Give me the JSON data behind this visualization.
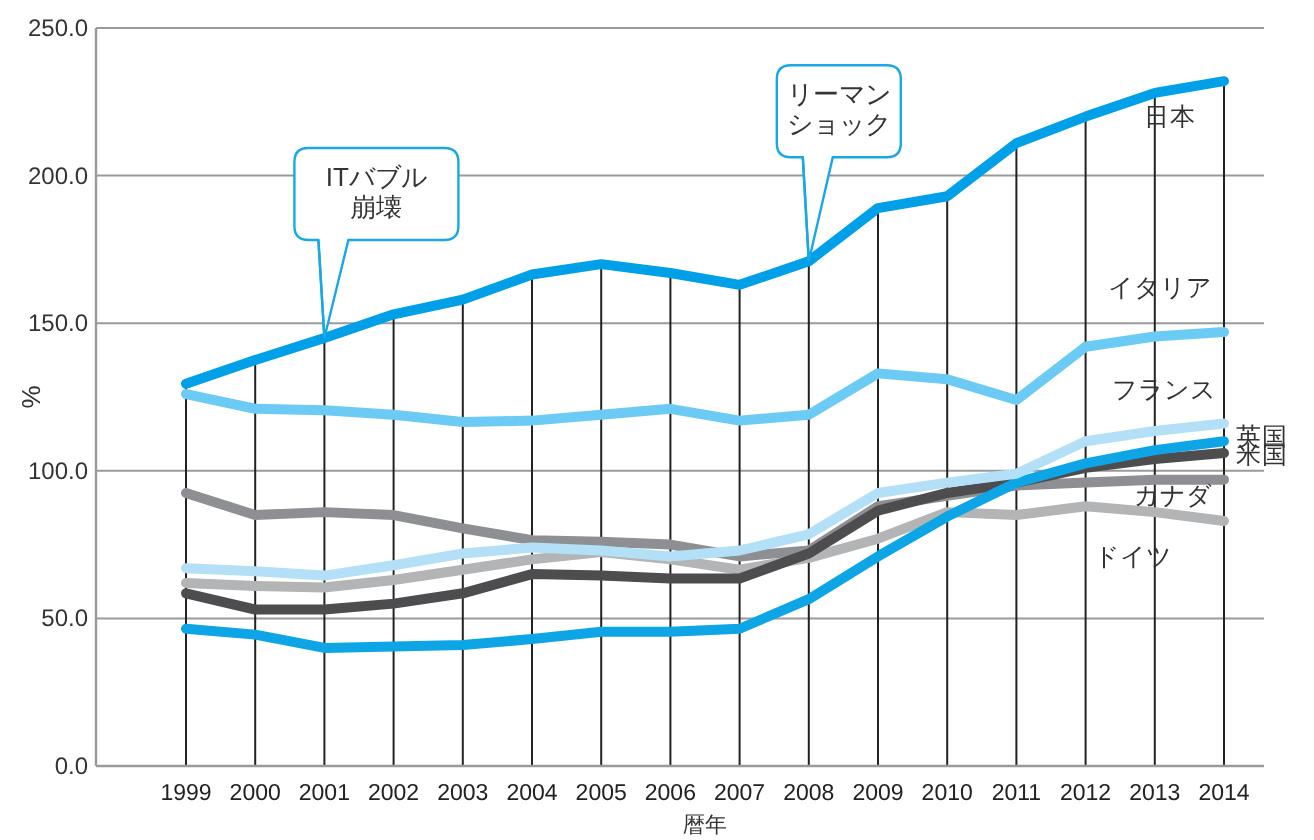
{
  "chart_data": {
    "type": "line",
    "xlabel": "暦年",
    "ylabel": "%",
    "categories": [
      "1999",
      "2000",
      "2001",
      "2002",
      "2003",
      "2004",
      "2005",
      "2006",
      "2007",
      "2008",
      "2009",
      "2010",
      "2011",
      "2012",
      "2013",
      "2014"
    ],
    "ylim": [
      0,
      250
    ],
    "yticks": [
      {
        "value": 0,
        "label": "0.0"
      },
      {
        "value": 50,
        "label": "50.0"
      },
      {
        "value": 100,
        "label": "100.0"
      },
      {
        "value": 150,
        "label": "150.0"
      },
      {
        "value": 200,
        "label": "200.0"
      },
      {
        "value": 250,
        "label": "250.0"
      }
    ],
    "grid": true,
    "legend": false,
    "marker": "none",
    "line_style": "solid",
    "series": [
      {
        "name": "日本",
        "color": "#00a0e9",
        "values": [
          129.5,
          137.5,
          145,
          153,
          158,
          166.5,
          170,
          167,
          163,
          171,
          189,
          193,
          211,
          220,
          228,
          232
        ]
      },
      {
        "name": "イタリア",
        "color": "#6ccbf4",
        "values": [
          126,
          121,
          120.5,
          119,
          116.5,
          117,
          119,
          121,
          117,
          119,
          133,
          131,
          124,
          142,
          145.5,
          147
        ]
      },
      {
        "name": "フランス",
        "color": "#b3e0f7",
        "values": [
          67,
          66,
          64.5,
          68,
          72,
          74,
          73,
          71,
          73,
          78.5,
          92.5,
          96,
          99,
          110,
          113.5,
          116
        ]
      },
      {
        "name": "英国",
        "color": "#0ea5e6",
        "values": [
          46.5,
          44.5,
          40,
          40.5,
          41,
          43,
          45.5,
          45.5,
          46.5,
          56.5,
          71,
          84.5,
          96,
          102.5,
          107,
          110
        ]
      },
      {
        "name": "米国",
        "color": "#4d4d4f",
        "values": [
          58.5,
          53,
          53,
          55,
          58.5,
          65,
          64.5,
          63.5,
          63.5,
          72,
          86.5,
          92.5,
          96,
          101,
          104,
          106
        ]
      },
      {
        "name": "カナダ",
        "color": "#8e8f92",
        "values": [
          92.5,
          85,
          86,
          85,
          80.5,
          76.5,
          76,
          75,
          71,
          73,
          88,
          91.5,
          95,
          96,
          97,
          97
        ]
      },
      {
        "name": "ドイツ",
        "color": "#b3b4b6",
        "values": [
          62,
          61,
          60.5,
          63,
          66.5,
          70,
          72.5,
          70,
          66.5,
          70.5,
          77,
          86,
          85,
          88,
          86,
          83
        ]
      }
    ],
    "ref_lines": [
      {
        "axis": "x",
        "value": "1999"
      },
      {
        "axis": "x",
        "value": "2000"
      },
      {
        "axis": "x",
        "value": "2001"
      },
      {
        "axis": "x",
        "value": "2002"
      },
      {
        "axis": "x",
        "value": "2003"
      },
      {
        "axis": "x",
        "value": "2004"
      },
      {
        "axis": "x",
        "value": "2005"
      },
      {
        "axis": "x",
        "value": "2006"
      },
      {
        "axis": "x",
        "value": "2007"
      },
      {
        "axis": "x",
        "value": "2008"
      },
      {
        "axis": "x",
        "value": "2009"
      },
      {
        "axis": "x",
        "value": "2010"
      },
      {
        "axis": "x",
        "value": "2011"
      },
      {
        "axis": "x",
        "value": "2012"
      },
      {
        "axis": "x",
        "value": "2013"
      },
      {
        "axis": "x",
        "value": "2014"
      }
    ],
    "annotations": [
      {
        "text": "ITバブル崩壊",
        "x": "2001",
        "y": 145
      },
      {
        "text": "リーマンショック",
        "x": "2008",
        "y": 171
      }
    ]
  }
}
